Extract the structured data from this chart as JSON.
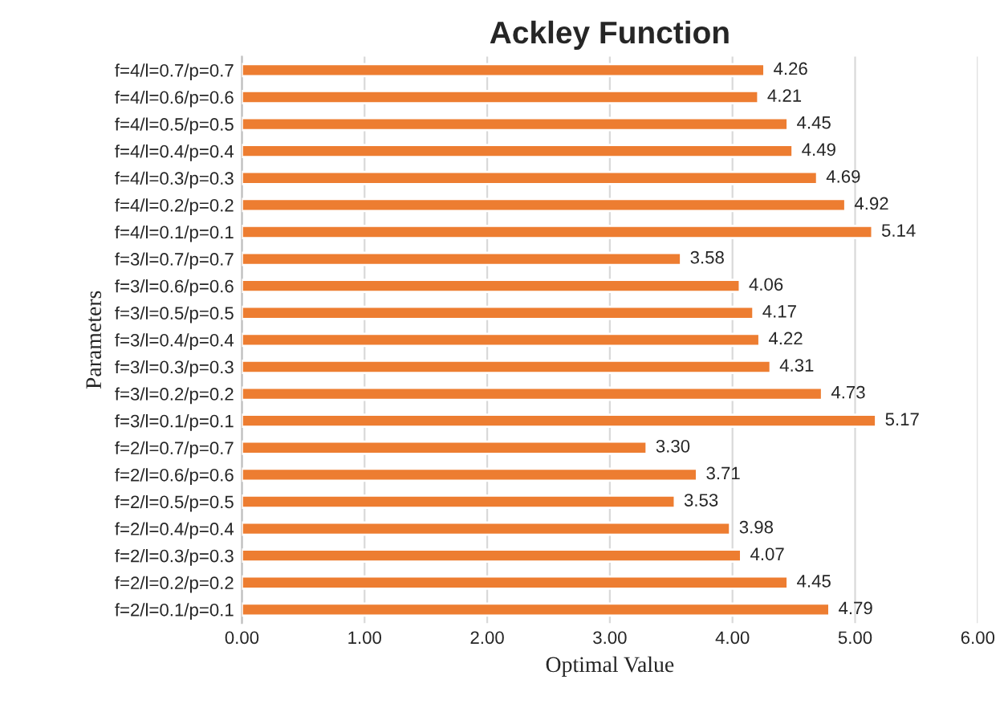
{
  "chart_data": {
    "type": "bar",
    "orientation": "horizontal",
    "title": "Ackley Function",
    "xlabel": "Optimal Value",
    "ylabel": "Parameters",
    "categories": [
      "f=4/l=0.7/p=0.7",
      "f=4/l=0.6/p=0.6",
      "f=4/l=0.5/p=0.5",
      "f=4/l=0.4/p=0.4",
      "f=4/l=0.3/p=0.3",
      "f=4/l=0.2/p=0.2",
      "f=4/l=0.1/p=0.1",
      "f=3/l=0.7/p=0.7",
      "f=3/l=0.6/p=0.6",
      "f=3/l=0.5/p=0.5",
      "f=3/l=0.4/p=0.4",
      "f=3/l=0.3/p=0.3",
      "f=3/l=0.2/p=0.2",
      "f=3/l=0.1/p=0.1",
      "f=2/l=0.7/p=0.7",
      "f=2/l=0.6/p=0.6",
      "f=2/l=0.5/p=0.5",
      "f=2/l=0.4/p=0.4",
      "f=2/l=0.3/p=0.3",
      "f=2/l=0.2/p=0.2",
      "f=2/l=0.1/p=0.1"
    ],
    "values": [
      4.26,
      4.21,
      4.45,
      4.49,
      4.69,
      4.92,
      5.14,
      3.58,
      4.06,
      4.17,
      4.22,
      4.31,
      4.73,
      5.17,
      3.3,
      3.71,
      3.53,
      3.98,
      4.07,
      4.45,
      4.79
    ],
    "value_labels": [
      "4.26",
      "4.21",
      "4.45",
      "4.49",
      "4.69",
      "4.92",
      "5.14",
      "3.58",
      "4.06",
      "4.17",
      "4.22",
      "4.31",
      "4.73",
      "5.17",
      "3.30",
      "3.71",
      "3.53",
      "3.98",
      "4.07",
      "4.45",
      "4.79"
    ],
    "color": "#ed7d31",
    "xlim": [
      0,
      6
    ],
    "xticks": [
      {
        "value": 0,
        "label": "0.00"
      },
      {
        "value": 1,
        "label": "1.00"
      },
      {
        "value": 2,
        "label": "2.00"
      },
      {
        "value": 3,
        "label": "3.00"
      },
      {
        "value": 4,
        "label": "4.00"
      },
      {
        "value": 5,
        "label": "5.00"
      },
      {
        "value": 6,
        "label": "6.00"
      }
    ],
    "grid": "x"
  }
}
